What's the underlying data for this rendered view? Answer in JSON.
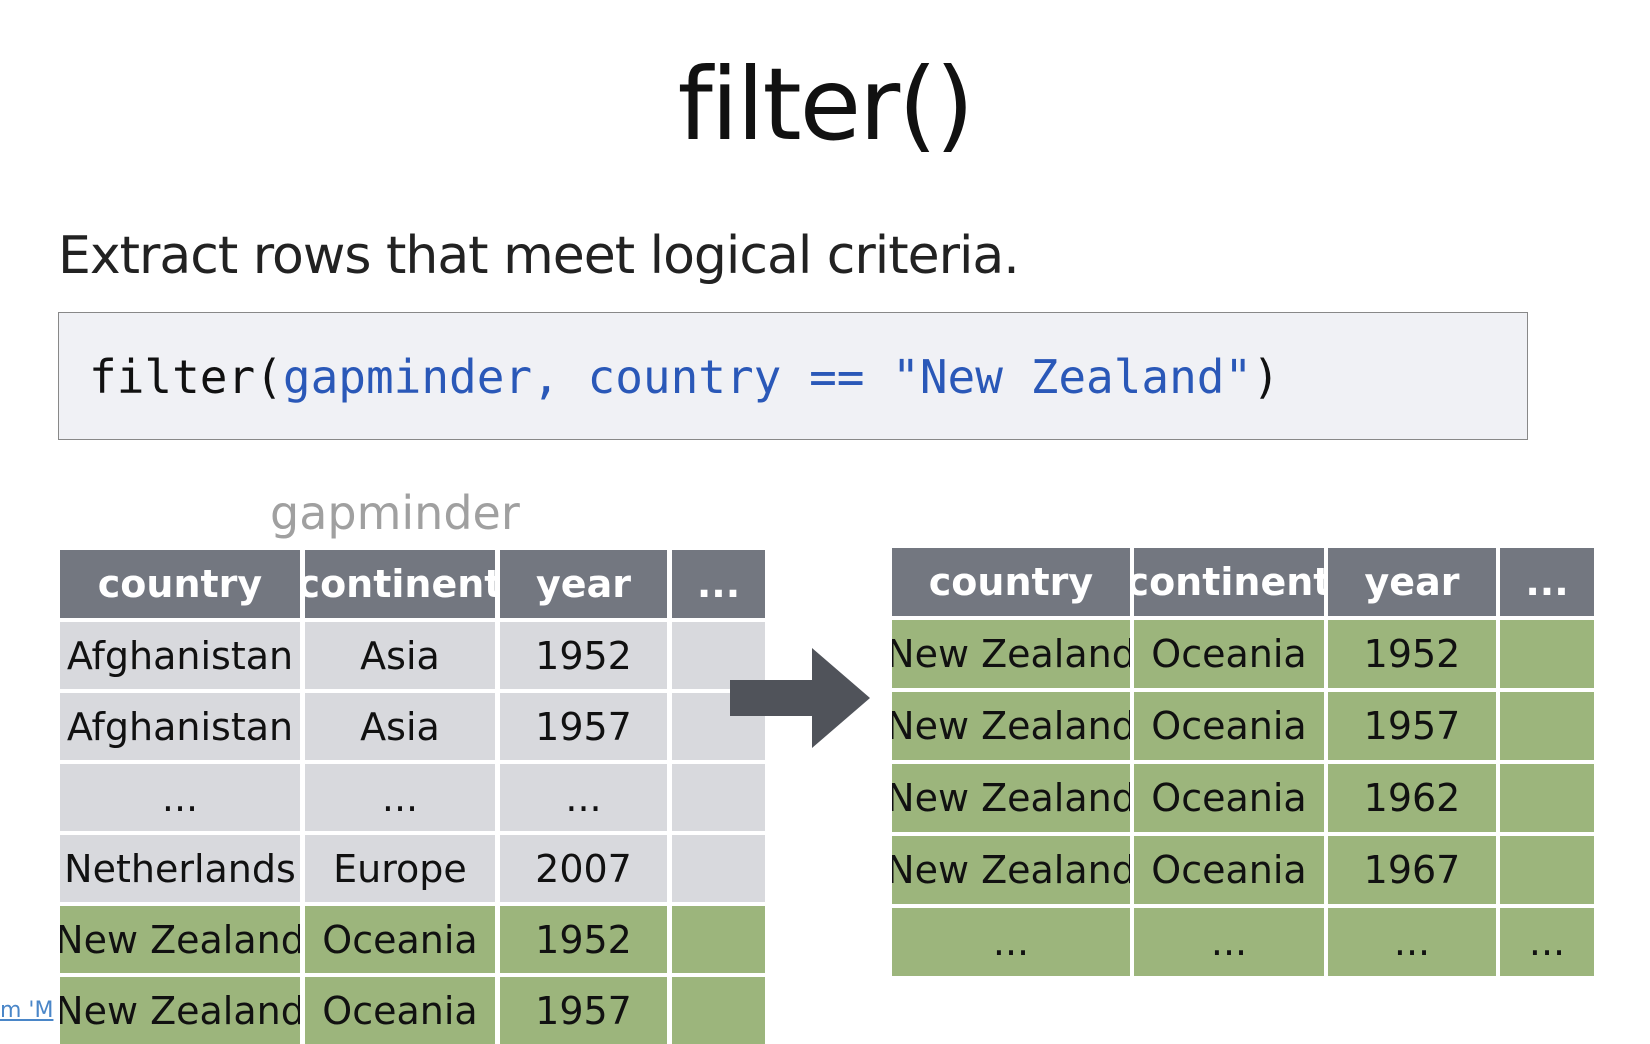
{
  "title": "filter()",
  "subtitle": "Extract rows that meet logical criteria.",
  "code": {
    "fn": "filter(",
    "args": "gapminder, country == \"New Zealand\"",
    "close": ")"
  },
  "input_table": {
    "label": "gapminder",
    "headers": [
      "country",
      "continent",
      "year",
      "..."
    ],
    "rows": [
      {
        "cells": [
          "Afghanistan",
          "Asia",
          "1952",
          ""
        ],
        "highlight": false
      },
      {
        "cells": [
          "Afghanistan",
          "Asia",
          "1957",
          ""
        ],
        "highlight": false
      },
      {
        "cells": [
          "...",
          "...",
          "...",
          ""
        ],
        "highlight": false
      },
      {
        "cells": [
          "Netherlands",
          "Europe",
          "2007",
          ""
        ],
        "highlight": false
      },
      {
        "cells": [
          "New Zealand",
          "Oceania",
          "1952",
          ""
        ],
        "highlight": true
      },
      {
        "cells": [
          "New Zealand",
          "Oceania",
          "1957",
          ""
        ],
        "highlight": true
      }
    ]
  },
  "output_table": {
    "headers": [
      "country",
      "continent",
      "year",
      "..."
    ],
    "rows": [
      {
        "cells": [
          "New Zealand",
          "Oceania",
          "1952",
          ""
        ],
        "highlight": true
      },
      {
        "cells": [
          "New Zealand",
          "Oceania",
          "1957",
          ""
        ],
        "highlight": true
      },
      {
        "cells": [
          "New Zealand",
          "Oceania",
          "1962",
          ""
        ],
        "highlight": true
      },
      {
        "cells": [
          "New Zealand",
          "Oceania",
          "1967",
          ""
        ],
        "highlight": true
      },
      {
        "cells": [
          "...",
          "...",
          "...",
          "..."
        ],
        "highlight": true
      }
    ]
  },
  "arrow_icon": "right-arrow-icon",
  "link_fragment": "m 'M",
  "colors": {
    "header": "#737780",
    "gray_row": "#d8d9dd",
    "green_row": "#9cb57c",
    "code_arg": "#2a58b8"
  }
}
